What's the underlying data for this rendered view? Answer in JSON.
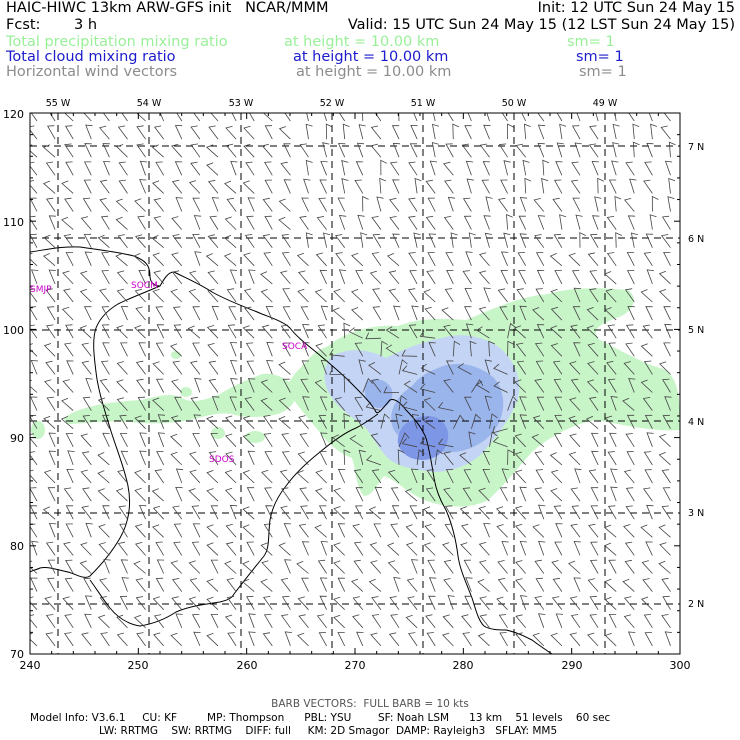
{
  "header": {
    "title": "HAIC-HIWC 13km ARW-GFS init   NCAR/MMM",
    "init": "Init: 12 UTC Sun 24 May 15",
    "fcst_label": "Fcst:",
    "fcst_value": "3 h",
    "valid": "Valid: 15 UTC Sun 24 May 15 (12 LST Sun 24 May 15)",
    "fields": [
      {
        "name": "Total precipitation mixing ratio",
        "height": "at height = 10.00 km",
        "sm": "sm= 1",
        "color": "#99f099"
      },
      {
        "name": "Total cloud mixing ratio",
        "height": "at height = 10.00 km",
        "sm": "sm= 1",
        "color": "#1c1ccc"
      },
      {
        "name": "Horizontal wind vectors",
        "height": "at height = 10.00 km",
        "sm": "sm= 1",
        "color": "#8c8c8c"
      }
    ]
  },
  "map": {
    "x_ticks": [
      240,
      250,
      260,
      270,
      280,
      290,
      300
    ],
    "y_ticks": [
      70,
      80,
      90,
      100,
      110,
      120
    ],
    "x_range": [
      240,
      300
    ],
    "y_range": [
      70,
      120
    ],
    "lon_labels": [
      "55 W",
      "54 W",
      "53 W",
      "52 W",
      "51 W",
      "50 W",
      "49 W"
    ],
    "lat_labels": [
      "7 N",
      "6 N",
      "5 N",
      "4 N",
      "3 N",
      "2 N"
    ],
    "stations": [
      {
        "id": "SMJP"
      },
      {
        "id": "SOCM"
      },
      {
        "id": "SOCA"
      },
      {
        "id": "SDOS"
      }
    ],
    "colors": {
      "precip": "#c8f5c8",
      "cloud_light": "#c4d4f4",
      "cloud_mid": "#9ab4ec",
      "cloud_dark": "#7e96e6",
      "station_label": "#cc00cc"
    }
  },
  "footer": {
    "barb": "BARB VECTORS:  FULL BARB = 10 kts",
    "line1": "Model Info: V3.6.1     CU: KF         MP: Thompson      PBL: YSU        SF: Noah LSM      13 km    51 levels    60 sec",
    "line2": "LW: RRTMG    SW: RRTMG    DIFF: full     KM: 2D Smagor  DAMP: Rayleigh3   SFLAY: MM5"
  }
}
